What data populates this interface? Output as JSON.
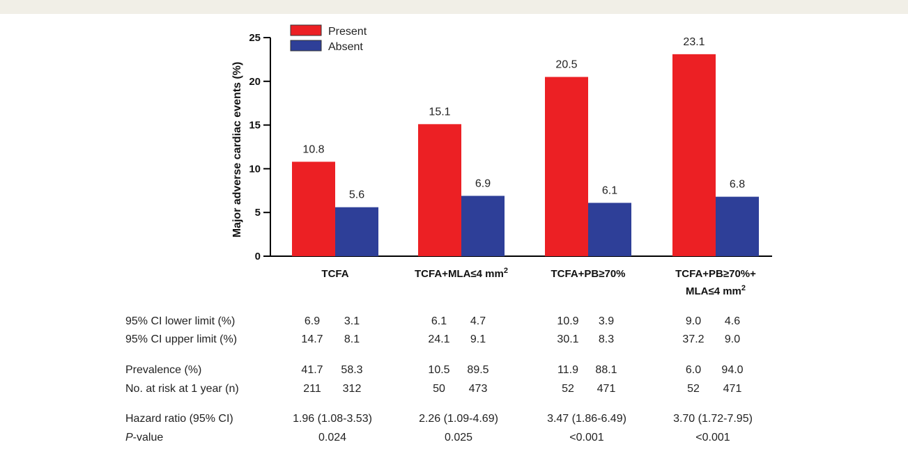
{
  "chart_data": {
    "type": "bar",
    "ylabel": "Major adverse cardiac events (%)",
    "xlabel": "",
    "ylim": [
      0,
      25
    ],
    "yticks": [
      0,
      5,
      10,
      15,
      20,
      25
    ],
    "legend_position": "top-left",
    "categories": [
      "TCFA",
      "TCFA+MLA≤4 mm²",
      "TCFA+PB≥70%",
      "TCFA+PB≥70%+\nMLA≤4 mm²"
    ],
    "series": [
      {
        "name": "Present",
        "color": "#ec2024",
        "values": [
          10.8,
          15.1,
          20.5,
          23.1
        ]
      },
      {
        "name": "Absent",
        "color": "#2e3f98",
        "values": [
          5.6,
          6.9,
          6.1,
          6.8
        ]
      }
    ]
  },
  "stats_table": {
    "rows": [
      {
        "label": "95% CI lower limit (%)",
        "values": [
          [
            "6.9",
            "3.1"
          ],
          [
            "6.1",
            "4.7"
          ],
          [
            "10.9",
            "3.9"
          ],
          [
            "9.0",
            "4.6"
          ]
        ]
      },
      {
        "label": "95% CI upper limit (%)",
        "values": [
          [
            "14.7",
            "8.1"
          ],
          [
            "24.1",
            "9.1"
          ],
          [
            "30.1",
            "8.3"
          ],
          [
            "37.2",
            "9.0"
          ]
        ]
      },
      {
        "label": "Prevalence (%)",
        "values": [
          [
            "41.7",
            "58.3"
          ],
          [
            "10.5",
            "89.5"
          ],
          [
            "11.9",
            "88.1"
          ],
          [
            "6.0",
            "94.0"
          ]
        ]
      },
      {
        "label": "No. at risk at 1 year (n)",
        "values": [
          [
            "211",
            "312"
          ],
          [
            "50",
            "473"
          ],
          [
            "52",
            "471"
          ],
          [
            "52",
            "471"
          ]
        ]
      },
      {
        "label": "Hazard ratio (95% CI)",
        "values": [
          "1.96 (1.08-3.53)",
          "2.26 (1.09-4.69)",
          "3.47 (1.86-6.49)",
          "3.70 (1.72-7.95)"
        ]
      },
      {
        "label_italic": "P",
        "label": "-value",
        "values": [
          "0.024",
          "0.025",
          "<0.001",
          "<0.001"
        ]
      }
    ]
  }
}
